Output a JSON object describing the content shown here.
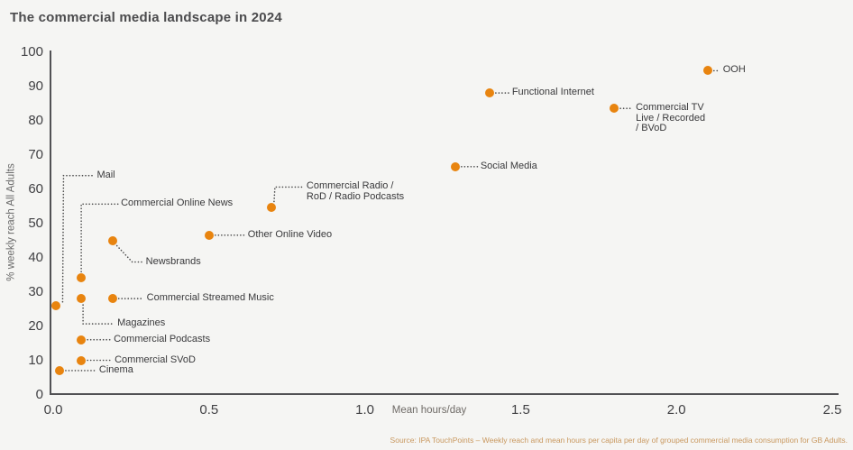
{
  "page": {
    "title": "The commercial media landscape in 2024",
    "source": "Source: IPA TouchPoints – Weekly reach and mean hours per capita per day of grouped commercial media consumption for GB Adults."
  },
  "colors": {
    "background": "#f5f5f3",
    "point_orange": "#e8840f",
    "leader_line": "#4a4a4a",
    "title_text": "#4b4b4d",
    "axis_line": "#515154",
    "axis_tick_text": "#414144",
    "point_label_text": "#39393b",
    "axis_label_text": "#6a6a6a",
    "source_text": "#c9985f"
  },
  "chart_data": {
    "type": "scatter",
    "title": "The commercial media landscape in 2024",
    "xlabel": "Mean hours/day",
    "ylabel": "% weekly reach All Adults",
    "xlim": [
      0,
      2.5
    ],
    "ylim": [
      0,
      100
    ],
    "xticks": [
      "0.0",
      "0.5",
      "1.0",
      "1.5",
      "2.0",
      "2.5"
    ],
    "yticks": [
      0,
      10,
      20,
      30,
      40,
      50,
      60,
      70,
      80,
      90,
      100
    ],
    "grid": false,
    "legend": "none",
    "points": [
      {
        "name": "Mail",
        "x": 0.01,
        "y": 26,
        "label_lines": [
          "Mail"
        ],
        "leader": [
          [
            7,
            -4
          ],
          [
            8,
            -144
          ],
          [
            42,
            -144
          ]
        ]
      },
      {
        "name": "Cinema",
        "x": 0.02,
        "y": 7,
        "label_lines": [
          "Cinema"
        ],
        "leader": [
          [
            7,
            0
          ],
          [
            41,
            0
          ]
        ]
      },
      {
        "name": "Commercial SVoD",
        "x": 0.09,
        "y": 10,
        "label_lines": [
          "Commercial SVoD"
        ],
        "leader": [
          [
            7,
            0
          ],
          [
            34,
            0
          ]
        ]
      },
      {
        "name": "Commercial Podcasts",
        "x": 0.09,
        "y": 16,
        "label_lines": [
          "Commercial Podcasts"
        ],
        "leader": [
          [
            7,
            0
          ],
          [
            33,
            0
          ]
        ]
      },
      {
        "name": "Magazines",
        "x": 0.09,
        "y": 28,
        "label_lines": [
          "Magazines"
        ],
        "leader": [
          [
            2,
            7
          ],
          [
            2,
            28
          ],
          [
            37,
            28
          ]
        ]
      },
      {
        "name": "Commercial Online News",
        "x": 0.09,
        "y": 34,
        "label_lines": [
          "Commercial Online News"
        ],
        "leader": [
          [
            0,
            -7
          ],
          [
            0,
            -82
          ],
          [
            41,
            -82
          ]
        ]
      },
      {
        "name": "Commercial Streamed Music",
        "x": 0.19,
        "y": 28,
        "label_lines": [
          "Commercial Streamed Music"
        ],
        "leader": [
          [
            7,
            0
          ],
          [
            35,
            0
          ]
        ]
      },
      {
        "name": "Newsbrands",
        "x": 0.19,
        "y": 45,
        "label_lines": [
          "Newsbrands"
        ],
        "leader": [
          [
            5,
            6
          ],
          [
            22,
            24
          ],
          [
            34,
            24
          ]
        ]
      },
      {
        "name": "Other Online Video",
        "x": 0.5,
        "y": 46.5,
        "label_lines": [
          "Other Online Video"
        ],
        "leader": [
          [
            7,
            0
          ],
          [
            40,
            0
          ]
        ]
      },
      {
        "name": "Commercial Radio / RoD / Radio Podcasts",
        "x": 0.7,
        "y": 54.5,
        "label_lines": [
          "Commercial Radio /",
          "RoD / Radio Podcasts"
        ],
        "leader": [
          [
            3,
            -7
          ],
          [
            4,
            -23
          ],
          [
            36,
            -23
          ]
        ]
      },
      {
        "name": "Social Media",
        "x": 1.29,
        "y": 66.5,
        "label_lines": [
          "Social Media"
        ],
        "leader": [
          [
            7,
            0
          ],
          [
            25,
            0
          ]
        ]
      },
      {
        "name": "Functional Internet",
        "x": 1.4,
        "y": 88,
        "label_lines": [
          "Functional Internet"
        ],
        "leader": [
          [
            7,
            0
          ],
          [
            22,
            0
          ]
        ]
      },
      {
        "name": "Commercial TV Live / Recorded / BVoD",
        "x": 1.8,
        "y": 83.5,
        "label_lines": [
          "Commercial TV",
          "Live / Recorded",
          "/ BVoD"
        ],
        "leader": [
          [
            7,
            0
          ],
          [
            21,
            0
          ]
        ]
      },
      {
        "name": "OOH",
        "x": 2.1,
        "y": 94.5,
        "label_lines": [
          "OOH"
        ],
        "leader": [
          [
            7,
            0
          ],
          [
            14,
            0
          ]
        ]
      }
    ]
  }
}
